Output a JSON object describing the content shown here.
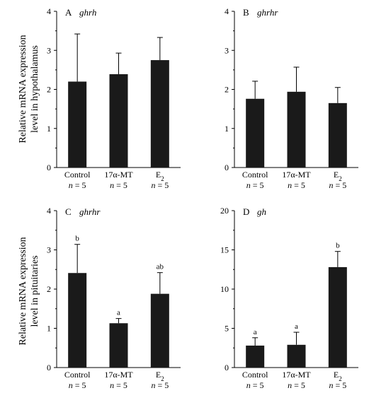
{
  "chart_data": [
    {
      "type": "bar",
      "panel": "A",
      "gene": "ghrh",
      "categories": [
        "Control",
        "17α-MT",
        "E2"
      ],
      "category_labels": [
        {
          "main": "Control",
          "sub": ""
        },
        {
          "main": "17α-MT",
          "sub": ""
        },
        {
          "main": "E",
          "sub": "2"
        }
      ],
      "n_labels": [
        "n = 5",
        "n = 5",
        "n = 5"
      ],
      "values": [
        2.2,
        2.39,
        2.75
      ],
      "errors": [
        1.22,
        0.54,
        0.58
      ],
      "significance": [
        "",
        "",
        ""
      ],
      "ylim": [
        0,
        4
      ],
      "yticks": [
        0,
        1,
        2,
        3,
        4
      ],
      "bar_color": "#1a1a1a"
    },
    {
      "type": "bar",
      "panel": "B",
      "gene": "ghrhr",
      "categories": [
        "Control",
        "17α-MT",
        "E2"
      ],
      "category_labels": [
        {
          "main": "Control",
          "sub": ""
        },
        {
          "main": "17α-MT",
          "sub": ""
        },
        {
          "main": "E",
          "sub": "2"
        }
      ],
      "n_labels": [
        "n = 5",
        "n = 5",
        "n = 5"
      ],
      "values": [
        1.76,
        1.94,
        1.65
      ],
      "errors": [
        0.45,
        0.63,
        0.4
      ],
      "significance": [
        "",
        "",
        ""
      ],
      "ylim": [
        0,
        4
      ],
      "yticks": [
        0,
        1,
        2,
        3,
        4
      ],
      "bar_color": "#1a1a1a"
    },
    {
      "type": "bar",
      "panel": "C",
      "gene": "ghrhr",
      "categories": [
        "Control",
        "17α-MT",
        "E2"
      ],
      "category_labels": [
        {
          "main": "Control",
          "sub": ""
        },
        {
          "main": "17α-MT",
          "sub": ""
        },
        {
          "main": "E",
          "sub": "2"
        }
      ],
      "n_labels": [
        "n = 5",
        "n = 5",
        "n = 5"
      ],
      "values": [
        2.41,
        1.13,
        1.88
      ],
      "errors": [
        0.73,
        0.12,
        0.54
      ],
      "significance": [
        "b",
        "a",
        "ab"
      ],
      "ylim": [
        0,
        4
      ],
      "yticks": [
        0,
        1,
        2,
        3,
        4
      ],
      "bar_color": "#1a1a1a"
    },
    {
      "type": "bar",
      "panel": "D",
      "gene": "gh",
      "categories": [
        "Control",
        "17α-MT",
        "E2"
      ],
      "category_labels": [
        {
          "main": "Control",
          "sub": ""
        },
        {
          "main": "17α-MT",
          "sub": ""
        },
        {
          "main": "E",
          "sub": "2"
        }
      ],
      "n_labels": [
        "n = 5",
        "n = 5",
        "n = 5"
      ],
      "values": [
        2.8,
        2.9,
        12.8
      ],
      "errors": [
        1.0,
        1.6,
        2.0
      ],
      "significance": [
        "a",
        "a",
        "b"
      ],
      "ylim": [
        0,
        20
      ],
      "yticks": [
        0,
        5,
        10,
        15,
        20
      ],
      "bar_color": "#1a1a1a"
    }
  ],
  "row_ylabels": [
    [
      "Relative mRNA expression",
      "level in hypothalamus"
    ],
    [
      "Relative mRNA expression",
      "level in pituitaries"
    ]
  ]
}
